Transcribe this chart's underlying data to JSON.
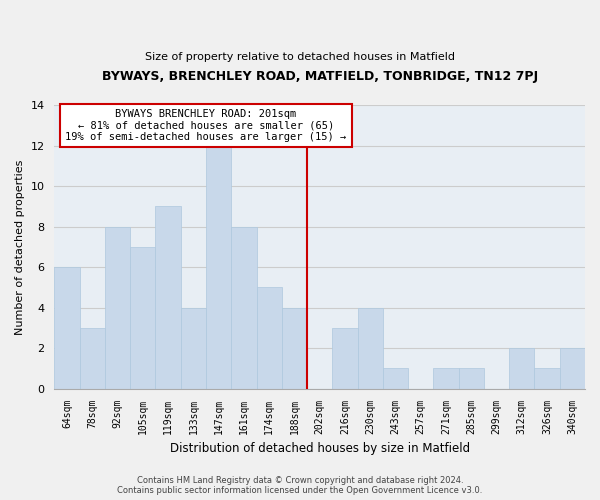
{
  "title": "BYWAYS, BRENCHLEY ROAD, MATFIELD, TONBRIDGE, TN12 7PJ",
  "subtitle": "Size of property relative to detached houses in Matfield",
  "xlabel": "Distribution of detached houses by size in Matfield",
  "ylabel": "Number of detached properties",
  "bin_labels": [
    "64sqm",
    "78sqm",
    "92sqm",
    "105sqm",
    "119sqm",
    "133sqm",
    "147sqm",
    "161sqm",
    "174sqm",
    "188sqm",
    "202sqm",
    "216sqm",
    "230sqm",
    "243sqm",
    "257sqm",
    "271sqm",
    "285sqm",
    "299sqm",
    "312sqm",
    "326sqm",
    "340sqm"
  ],
  "bar_heights": [
    6,
    3,
    8,
    7,
    9,
    4,
    12,
    8,
    5,
    4,
    0,
    3,
    4,
    1,
    0,
    1,
    1,
    0,
    2,
    1,
    2
  ],
  "bar_color": "#c8d8ea",
  "bar_edge_color": "#aec8de",
  "marker_label": "BYWAYS BRENCHLEY ROAD: 201sqm",
  "annotation_line1": "← 81% of detached houses are smaller (65)",
  "annotation_line2": "19% of semi-detached houses are larger (15) →",
  "marker_color": "#cc0000",
  "ylim": [
    0,
    14
  ],
  "yticks": [
    0,
    2,
    4,
    6,
    8,
    10,
    12,
    14
  ],
  "grid_color": "#cccccc",
  "footer_line1": "Contains HM Land Registry data © Crown copyright and database right 2024.",
  "footer_line2": "Contains public sector information licensed under the Open Government Licence v3.0.",
  "bg_color": "#f0f0f0",
  "plot_bg_color": "#e8eef4"
}
